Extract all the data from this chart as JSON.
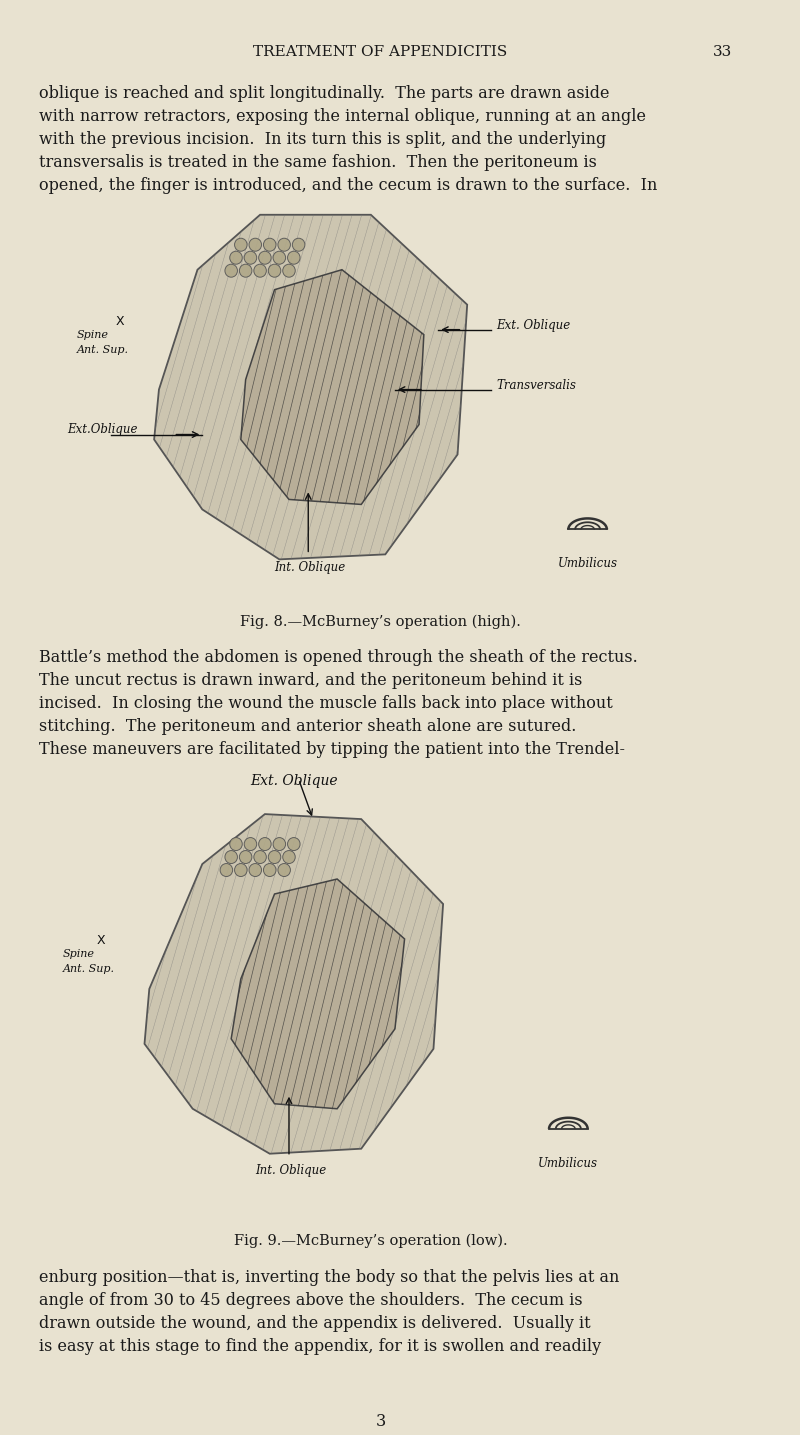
{
  "bg_color": "#e8e2d0",
  "text_color": "#1a1a1a",
  "page_title": "TREATMENT OF APPENDICITIS",
  "page_number": "33",
  "title_fontsize": 11,
  "page_num_fontsize": 11,
  "paragraph1": "oblique is reached and split longitudinally.  The parts are drawn aside\nwith narrow retractors, exposing the internal oblique, running at an angle\nwith the previous incision.  In its turn this is split, and the underlying\ntransversalis is treated in the same fashion.  Then the peritoneum is\nopened, the finger is introduced, and the cecum is drawn to the surface.  In",
  "fig8_caption": "Fig. 8.—McBurney’s operation (high).",
  "paragraph2": "Battle’s method the abdomen is opened through the sheath of the rectus.\nThe uncut rectus is drawn inward, and the peritoneum behind it is\nincised.  In closing the wound the muscle falls back into place without\nstitching.  The peritoneum and anterior sheath alone are sutured.\nThese maneuvers are facilitated by tipping the patient into the Trendel-",
  "fig9_caption": "Fig. 9.—McBurney’s operation (low).",
  "paragraph3": "enburg position—that is, inverting the body so that the pelvis lies at an\nangle of from 30 to 45 degrees above the shoulders.  The cecum is\ndrawn outside the wound, and the appendix is delivered.  Usually it\nis easy at this stage to find the appendix, for it is swollen and readily",
  "page_foot": "3",
  "body_fontsize": 11.5,
  "caption_fontsize": 10.5
}
